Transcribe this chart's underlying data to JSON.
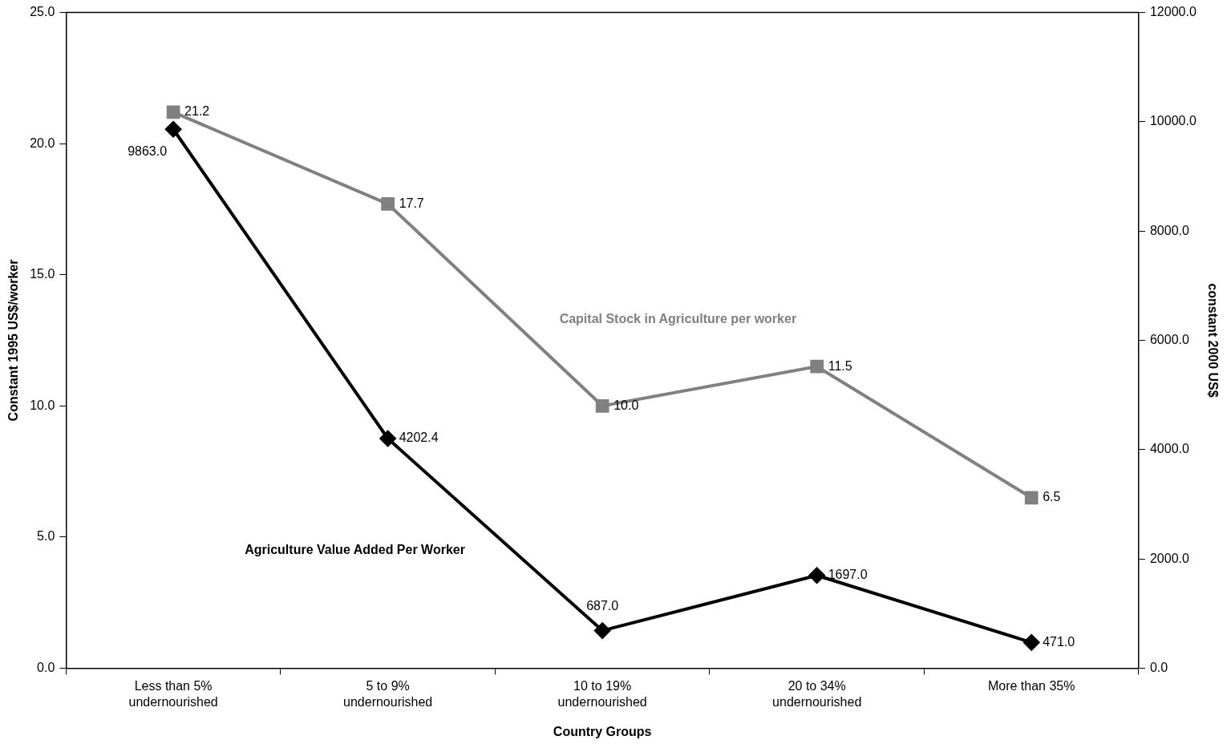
{
  "chart_data": {
    "type": "line",
    "xlabel": "Country Groups",
    "ylabel": "Constant 1995 US$/worker",
    "y2label": "constant 2000 US$",
    "categories": [
      "Less than 5%\nundernourished",
      "5 to 9%\nundernourished",
      "10 to 19%\nundernourished",
      "20 to 34%\nundernourished",
      "More than 35%"
    ],
    "series": [
      {
        "name": "Capital Stock in Agriculture per worker",
        "color": "#808080",
        "values": [
          21.2,
          17.7,
          10.0,
          11.5,
          6.5
        ],
        "value_labels": [
          "21.2",
          "17.7",
          "10.0",
          "11.5",
          "6.5"
        ],
        "marker": "square",
        "axis": "y"
      },
      {
        "name": "Agriculture Value Added Per Worker",
        "color": "#000000",
        "values": [
          9863.0,
          4202.4,
          687.0,
          1697.0,
          471.0
        ],
        "value_labels": [
          "9863.0",
          "4202.4",
          "687.0",
          "1697.0",
          "471.0"
        ],
        "marker": "diamond",
        "axis": "y2"
      }
    ],
    "ylim": [
      0,
      25
    ],
    "yticks": [
      {
        "value": 0,
        "label": "0.0"
      },
      {
        "value": 5,
        "label": "5.0"
      },
      {
        "value": 10,
        "label": "10.0"
      },
      {
        "value": 15,
        "label": "15.0"
      },
      {
        "value": 20,
        "label": "20.0"
      },
      {
        "value": 25,
        "label": "25.0"
      }
    ],
    "y2lim": [
      0,
      12000
    ],
    "y2ticks": [
      {
        "value": 0,
        "label": "0.0"
      },
      {
        "value": 2000,
        "label": "2000.0"
      },
      {
        "value": 4000,
        "label": "4000.0"
      },
      {
        "value": 6000,
        "label": "6000.0"
      },
      {
        "value": 8000,
        "label": "8000.0"
      },
      {
        "value": 10000,
        "label": "10000.0"
      },
      {
        "value": 12000,
        "label": "12000.0"
      }
    ],
    "grid": false,
    "legend": false,
    "line_style": "solid"
  }
}
